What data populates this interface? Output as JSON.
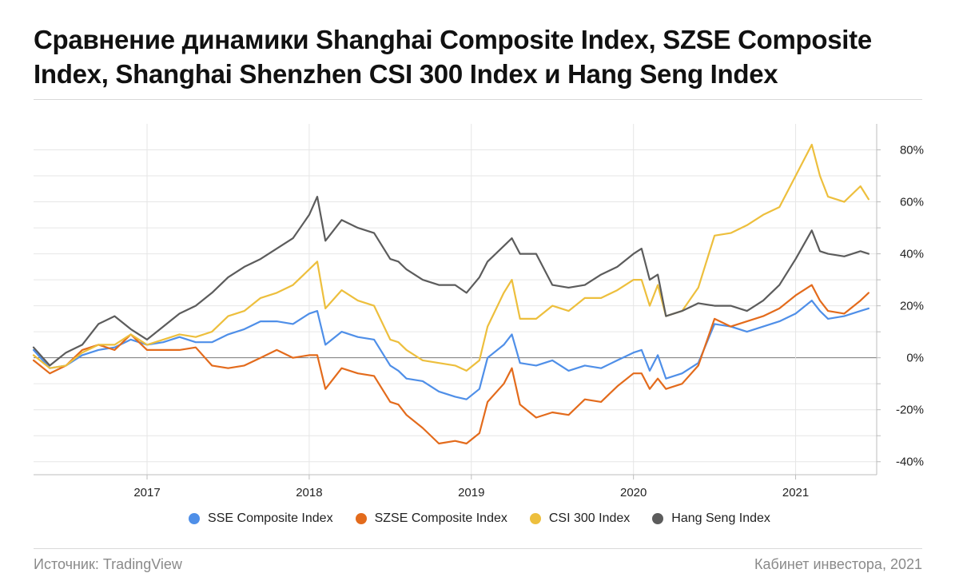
{
  "header": {
    "title": "Сравнение динамики Shanghai Composite Index, SZSE Composite Index, Shanghai Shenzhen CSI 300 Index и Hang Seng Index"
  },
  "footer": {
    "source": "Источник: TradingView",
    "brand": "Кабинет инвестора, 2021"
  },
  "chart_data": {
    "type": "line",
    "title": "Сравнение динамики Shanghai Composite Index, SZSE Composite Index, Shanghai Shenzhen CSI 300 Index и Hang Seng Index",
    "xlabel": "",
    "ylabel": "",
    "x_unit": "year (decimal)",
    "xlim": [
      2016.3,
      2021.5
    ],
    "ylim": [
      -45,
      90
    ],
    "y_ticks": [
      80,
      60,
      40,
      20,
      0,
      -20,
      -40
    ],
    "y_tick_labels": [
      "80%",
      "60%",
      "40%",
      "20%",
      "0%",
      "-20%",
      "-40%"
    ],
    "x_ticks": [
      2017,
      2018,
      2019,
      2020,
      2021
    ],
    "x_tick_labels": [
      "2017",
      "2018",
      "2019",
      "2020",
      "2021"
    ],
    "grid": true,
    "legend_position": "bottom-center",
    "series": [
      {
        "name": "SSE Composite Index",
        "color": "#4f8fe8",
        "points": [
          [
            2016.3,
            3
          ],
          [
            2016.4,
            -4
          ],
          [
            2016.5,
            -3
          ],
          [
            2016.6,
            1
          ],
          [
            2016.7,
            3
          ],
          [
            2016.8,
            4
          ],
          [
            2016.9,
            7
          ],
          [
            2017.0,
            5
          ],
          [
            2017.1,
            6
          ],
          [
            2017.2,
            8
          ],
          [
            2017.3,
            6
          ],
          [
            2017.4,
            6
          ],
          [
            2017.5,
            9
          ],
          [
            2017.6,
            11
          ],
          [
            2017.7,
            14
          ],
          [
            2017.8,
            14
          ],
          [
            2017.9,
            13
          ],
          [
            2018.0,
            17
          ],
          [
            2018.05,
            18
          ],
          [
            2018.1,
            5
          ],
          [
            2018.2,
            10
          ],
          [
            2018.3,
            8
          ],
          [
            2018.4,
            7
          ],
          [
            2018.5,
            -3
          ],
          [
            2018.55,
            -5
          ],
          [
            2018.6,
            -8
          ],
          [
            2018.7,
            -9
          ],
          [
            2018.8,
            -13
          ],
          [
            2018.9,
            -15
          ],
          [
            2018.97,
            -16
          ],
          [
            2019.05,
            -12
          ],
          [
            2019.1,
            0
          ],
          [
            2019.2,
            5
          ],
          [
            2019.25,
            9
          ],
          [
            2019.3,
            -2
          ],
          [
            2019.4,
            -3
          ],
          [
            2019.5,
            -1
          ],
          [
            2019.6,
            -5
          ],
          [
            2019.7,
            -3
          ],
          [
            2019.8,
            -4
          ],
          [
            2019.9,
            -1
          ],
          [
            2020.0,
            2
          ],
          [
            2020.05,
            3
          ],
          [
            2020.1,
            -5
          ],
          [
            2020.15,
            1
          ],
          [
            2020.2,
            -8
          ],
          [
            2020.3,
            -6
          ],
          [
            2020.4,
            -2
          ],
          [
            2020.5,
            13
          ],
          [
            2020.6,
            12
          ],
          [
            2020.7,
            10
          ],
          [
            2020.8,
            12
          ],
          [
            2020.9,
            14
          ],
          [
            2021.0,
            17
          ],
          [
            2021.1,
            22
          ],
          [
            2021.15,
            18
          ],
          [
            2021.2,
            15
          ],
          [
            2021.3,
            16
          ],
          [
            2021.4,
            18
          ],
          [
            2021.45,
            19
          ]
        ]
      },
      {
        "name": "SZSE Composite Index",
        "color": "#e36b1c",
        "points": [
          [
            2016.3,
            -1
          ],
          [
            2016.4,
            -6
          ],
          [
            2016.5,
            -3
          ],
          [
            2016.6,
            3
          ],
          [
            2016.7,
            5
          ],
          [
            2016.8,
            3
          ],
          [
            2016.9,
            9
          ],
          [
            2017.0,
            3
          ],
          [
            2017.1,
            3
          ],
          [
            2017.2,
            3
          ],
          [
            2017.3,
            4
          ],
          [
            2017.4,
            -3
          ],
          [
            2017.5,
            -4
          ],
          [
            2017.6,
            -3
          ],
          [
            2017.7,
            0
          ],
          [
            2017.8,
            3
          ],
          [
            2017.9,
            0
          ],
          [
            2018.0,
            1
          ],
          [
            2018.05,
            1
          ],
          [
            2018.1,
            -12
          ],
          [
            2018.2,
            -4
          ],
          [
            2018.3,
            -6
          ],
          [
            2018.4,
            -7
          ],
          [
            2018.5,
            -17
          ],
          [
            2018.55,
            -18
          ],
          [
            2018.6,
            -22
          ],
          [
            2018.7,
            -27
          ],
          [
            2018.8,
            -33
          ],
          [
            2018.9,
            -32
          ],
          [
            2018.97,
            -33
          ],
          [
            2019.05,
            -29
          ],
          [
            2019.1,
            -17
          ],
          [
            2019.2,
            -10
          ],
          [
            2019.25,
            -4
          ],
          [
            2019.3,
            -18
          ],
          [
            2019.4,
            -23
          ],
          [
            2019.5,
            -21
          ],
          [
            2019.6,
            -22
          ],
          [
            2019.7,
            -16
          ],
          [
            2019.8,
            -17
          ],
          [
            2019.9,
            -11
          ],
          [
            2020.0,
            -6
          ],
          [
            2020.05,
            -6
          ],
          [
            2020.1,
            -12
          ],
          [
            2020.15,
            -8
          ],
          [
            2020.2,
            -12
          ],
          [
            2020.3,
            -10
          ],
          [
            2020.4,
            -3
          ],
          [
            2020.5,
            15
          ],
          [
            2020.6,
            12
          ],
          [
            2020.7,
            14
          ],
          [
            2020.8,
            16
          ],
          [
            2020.9,
            19
          ],
          [
            2021.0,
            24
          ],
          [
            2021.1,
            28
          ],
          [
            2021.15,
            22
          ],
          [
            2021.2,
            18
          ],
          [
            2021.3,
            17
          ],
          [
            2021.4,
            22
          ],
          [
            2021.45,
            25
          ]
        ]
      },
      {
        "name": "CSI 300 Index",
        "color": "#edbf3d",
        "points": [
          [
            2016.3,
            1
          ],
          [
            2016.4,
            -4
          ],
          [
            2016.5,
            -3
          ],
          [
            2016.6,
            2
          ],
          [
            2016.7,
            5
          ],
          [
            2016.8,
            5
          ],
          [
            2016.9,
            9
          ],
          [
            2017.0,
            5
          ],
          [
            2017.1,
            7
          ],
          [
            2017.2,
            9
          ],
          [
            2017.3,
            8
          ],
          [
            2017.4,
            10
          ],
          [
            2017.5,
            16
          ],
          [
            2017.6,
            18
          ],
          [
            2017.7,
            23
          ],
          [
            2017.8,
            25
          ],
          [
            2017.9,
            28
          ],
          [
            2018.0,
            34
          ],
          [
            2018.05,
            37
          ],
          [
            2018.1,
            19
          ],
          [
            2018.2,
            26
          ],
          [
            2018.3,
            22
          ],
          [
            2018.4,
            20
          ],
          [
            2018.5,
            7
          ],
          [
            2018.55,
            6
          ],
          [
            2018.6,
            3
          ],
          [
            2018.7,
            -1
          ],
          [
            2018.8,
            -2
          ],
          [
            2018.9,
            -3
          ],
          [
            2018.97,
            -5
          ],
          [
            2019.05,
            -1
          ],
          [
            2019.1,
            12
          ],
          [
            2019.2,
            25
          ],
          [
            2019.25,
            30
          ],
          [
            2019.3,
            15
          ],
          [
            2019.4,
            15
          ],
          [
            2019.5,
            20
          ],
          [
            2019.6,
            18
          ],
          [
            2019.7,
            23
          ],
          [
            2019.8,
            23
          ],
          [
            2019.9,
            26
          ],
          [
            2020.0,
            30
          ],
          [
            2020.05,
            30
          ],
          [
            2020.1,
            20
          ],
          [
            2020.15,
            28
          ],
          [
            2020.2,
            16
          ],
          [
            2020.3,
            18
          ],
          [
            2020.4,
            27
          ],
          [
            2020.5,
            47
          ],
          [
            2020.6,
            48
          ],
          [
            2020.7,
            51
          ],
          [
            2020.8,
            55
          ],
          [
            2020.9,
            58
          ],
          [
            2021.0,
            70
          ],
          [
            2021.1,
            82
          ],
          [
            2021.15,
            70
          ],
          [
            2021.2,
            62
          ],
          [
            2021.3,
            60
          ],
          [
            2021.4,
            66
          ],
          [
            2021.45,
            61
          ]
        ]
      },
      {
        "name": "Hang Seng Index",
        "color": "#5c5c5c",
        "points": [
          [
            2016.3,
            4
          ],
          [
            2016.4,
            -3
          ],
          [
            2016.5,
            2
          ],
          [
            2016.6,
            5
          ],
          [
            2016.7,
            13
          ],
          [
            2016.8,
            16
          ],
          [
            2016.9,
            11
          ],
          [
            2017.0,
            7
          ],
          [
            2017.1,
            12
          ],
          [
            2017.2,
            17
          ],
          [
            2017.3,
            20
          ],
          [
            2017.4,
            25
          ],
          [
            2017.5,
            31
          ],
          [
            2017.6,
            35
          ],
          [
            2017.7,
            38
          ],
          [
            2017.8,
            42
          ],
          [
            2017.9,
            46
          ],
          [
            2018.0,
            55
          ],
          [
            2018.05,
            62
          ],
          [
            2018.1,
            45
          ],
          [
            2018.2,
            53
          ],
          [
            2018.3,
            50
          ],
          [
            2018.4,
            48
          ],
          [
            2018.5,
            38
          ],
          [
            2018.55,
            37
          ],
          [
            2018.6,
            34
          ],
          [
            2018.7,
            30
          ],
          [
            2018.8,
            28
          ],
          [
            2018.9,
            28
          ],
          [
            2018.97,
            25
          ],
          [
            2019.05,
            31
          ],
          [
            2019.1,
            37
          ],
          [
            2019.2,
            43
          ],
          [
            2019.25,
            46
          ],
          [
            2019.3,
            40
          ],
          [
            2019.4,
            40
          ],
          [
            2019.5,
            28
          ],
          [
            2019.6,
            27
          ],
          [
            2019.7,
            28
          ],
          [
            2019.8,
            32
          ],
          [
            2019.9,
            35
          ],
          [
            2020.0,
            40
          ],
          [
            2020.05,
            42
          ],
          [
            2020.1,
            30
          ],
          [
            2020.15,
            32
          ],
          [
            2020.2,
            16
          ],
          [
            2020.3,
            18
          ],
          [
            2020.4,
            21
          ],
          [
            2020.5,
            20
          ],
          [
            2020.6,
            20
          ],
          [
            2020.7,
            18
          ],
          [
            2020.8,
            22
          ],
          [
            2020.9,
            28
          ],
          [
            2021.0,
            38
          ],
          [
            2021.1,
            49
          ],
          [
            2021.15,
            41
          ],
          [
            2021.2,
            40
          ],
          [
            2021.3,
            39
          ],
          [
            2021.4,
            41
          ],
          [
            2021.45,
            40
          ]
        ]
      }
    ]
  }
}
